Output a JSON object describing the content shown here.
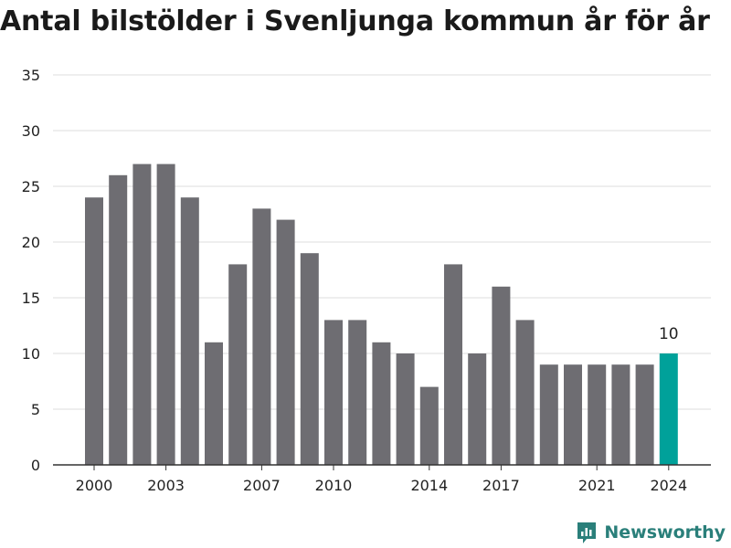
{
  "title": "Antal bilstölder i Svenljunga kommun år för år",
  "brand": {
    "name": "Newsworthy",
    "icon": "newsworthy-logo-icon",
    "color": "#2a7f7a"
  },
  "colors": {
    "bar": "#6e6d72",
    "highlight": "#00a19a",
    "grid": "#dddddd",
    "axis": "#333333"
  },
  "chart_data": {
    "type": "bar",
    "categories": [
      "2000",
      "2001",
      "2002",
      "2003",
      "2004",
      "2005",
      "2006",
      "2007",
      "2008",
      "2009",
      "2010",
      "2011",
      "2012",
      "2013",
      "2014",
      "2015",
      "2016",
      "2017",
      "2018",
      "2019",
      "2020",
      "2021",
      "2022",
      "2023",
      "2024"
    ],
    "values": [
      24,
      26,
      27,
      27,
      24,
      11,
      18,
      23,
      22,
      19,
      13,
      13,
      11,
      10,
      7,
      18,
      10,
      16,
      13,
      9,
      9,
      9,
      9,
      9,
      10
    ],
    "x_tick_labels": [
      "2000",
      "2003",
      "2007",
      "2010",
      "2014",
      "2017",
      "2021",
      "2024"
    ],
    "y_ticks": [
      0,
      5,
      10,
      15,
      20,
      25,
      30,
      35
    ],
    "ylim": [
      0,
      35
    ],
    "highlight_index": 24,
    "highlight_label": "10",
    "xlabel": "",
    "ylabel": "",
    "grid": true
  }
}
